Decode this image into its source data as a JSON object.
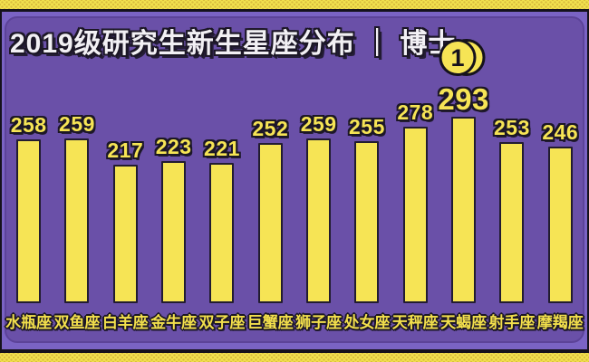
{
  "header": {
    "title": "2019级研究生新生星座分布 ｜ 博士"
  },
  "badge": {
    "label": "1"
  },
  "chart_data": {
    "type": "bar",
    "title": "2019级研究生新生星座分布 ｜ 博士",
    "categories": [
      "水瓶座",
      "双鱼座",
      "白羊座",
      "金牛座",
      "双子座",
      "巨蟹座",
      "狮子座",
      "处女座",
      "天秤座",
      "天蝎座",
      "射手座",
      "摩羯座"
    ],
    "values": [
      258,
      259,
      217,
      223,
      221,
      252,
      259,
      255,
      278,
      293,
      253,
      246
    ],
    "max_value": 293,
    "max_category": "天蝎座",
    "xlabel": "",
    "ylabel": "",
    "ylim": [
      0,
      300
    ],
    "grid": false,
    "legend_position": "none",
    "colors": {
      "background": "#6A50A8",
      "outer_background": "#7A63C4",
      "frame_yellow": "#F2E24E",
      "bar_fill": "#F6E455",
      "bar_outline": "#221C30",
      "value_text": "#F6E455",
      "category_text": "#F2DF4C",
      "title_text": "#F2F0F4"
    }
  }
}
